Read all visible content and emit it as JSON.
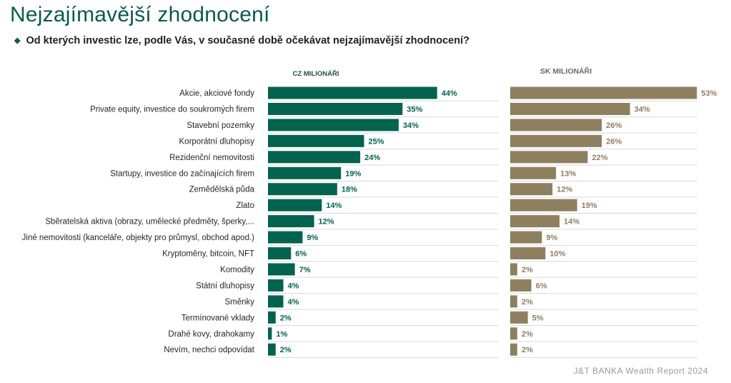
{
  "page": {
    "title": "Nejzajímavější zhodnocení",
    "question": "Od kterých investic lze, podle Vás, v současné době očekávat nejzajímavější zhodnocení?",
    "bullet": "◆",
    "source": "J&T BANKA Wealth Report 2024"
  },
  "colors": {
    "cz": "#04634f",
    "sk": "#8e7f61",
    "title": "#0b5a4e",
    "row_line": "#d9d9d9"
  },
  "chart_data": {
    "type": "bar",
    "orientation": "horizontal",
    "categories": [
      "Akcie, akciové fondy",
      "Private equity, investice do soukromých firem",
      "Stavební pozemky",
      "Korporátní dluhopisy",
      "Rezidenční nemovitosti",
      "Startupy, investice do začínajících firem",
      "Zemědělská půda",
      "Zlato",
      "Sběratelská aktiva (obrazy, umělecké předměty, šperky,...",
      "Jiné nemovitosti (kanceláře, objekty pro průmysl, obchod apod.)",
      "Kryptoměny, bitcoin, NFT",
      "Komodity",
      "Státní dluhopisy",
      "Směnky",
      "Termínované vklady",
      "Drahé kovy, drahokamy",
      "Nevím, nechci odpovídat"
    ],
    "series": [
      {
        "name": "CZ MILIONÁŘI",
        "values": [
          44,
          35,
          34,
          25,
          24,
          19,
          18,
          14,
          12,
          9,
          6,
          7,
          4,
          4,
          2,
          1,
          2
        ]
      },
      {
        "name": "SK MILIONÁŘI",
        "values": [
          53,
          34,
          26,
          26,
          22,
          13,
          12,
          19,
          14,
          9,
          10,
          2,
          6,
          2,
          5,
          2,
          2
        ]
      }
    ],
    "value_suffix": "%",
    "xlim": [
      0,
      60
    ],
    "grid": false,
    "legend": "panel headers above each bar group"
  }
}
